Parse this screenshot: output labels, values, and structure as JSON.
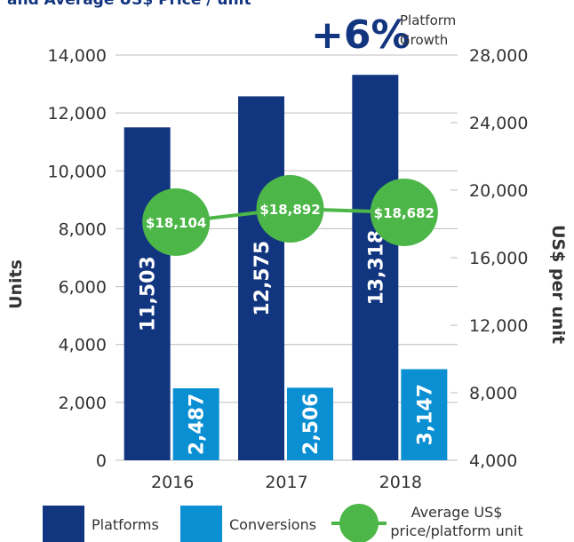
{
  "chart_data": {
    "type": "bar",
    "title": "and Average US$ Price / unit",
    "categories": [
      "2016",
      "2017",
      "2018"
    ],
    "series": [
      {
        "name": "Platforms",
        "color": "#12357f",
        "values": [
          11503,
          12575,
          13318
        ],
        "value_labels": [
          "11,503",
          "12,575",
          "13,318"
        ]
      },
      {
        "name": "Conversions",
        "color": "#0a8fd3",
        "values": [
          2487,
          2506,
          3147
        ],
        "value_labels": [
          "2,487",
          "2,506",
          "3,147"
        ]
      },
      {
        "name": "Average US$ price/platform unit",
        "color": "#4cb748",
        "type": "line",
        "axis": "y2",
        "values": [
          18104,
          18892,
          18682
        ],
        "value_labels": [
          "$18,104",
          "$18,892",
          "$18,682"
        ]
      }
    ],
    "ylabel": "Units",
    "y2label": "US$ per unit",
    "ylim": [
      0,
      14000
    ],
    "yticks": [
      0,
      {
        "value": 2000,
        "label": "2,000"
      },
      {
        "value": 4000,
        "label": "4,000"
      },
      {
        "value": 6000,
        "label": "6,000"
      },
      {
        "value": 8000,
        "label": "8,000"
      },
      {
        "value": 10000,
        "label": "10,000"
      },
      {
        "value": 12000,
        "label": "12,000"
      },
      {
        "value": 14000,
        "label": "14,000"
      }
    ],
    "y2lim": [
      4000,
      28000
    ],
    "y2ticks": [
      {
        "value": 4000,
        "label": "4,000"
      },
      {
        "value": 8000,
        "label": "8,000"
      },
      {
        "value": 12000,
        "label": "12,000"
      },
      {
        "value": 16000,
        "label": "16,000"
      },
      {
        "value": 20000,
        "label": "20,000"
      },
      {
        "value": 24000,
        "label": "24,000"
      },
      {
        "value": 28000,
        "label": "28,000"
      }
    ],
    "annotations": [
      {
        "text": "+6%"
      },
      {
        "text": "Platform Growth"
      }
    ],
    "grid": true,
    "legend": "bottom"
  }
}
